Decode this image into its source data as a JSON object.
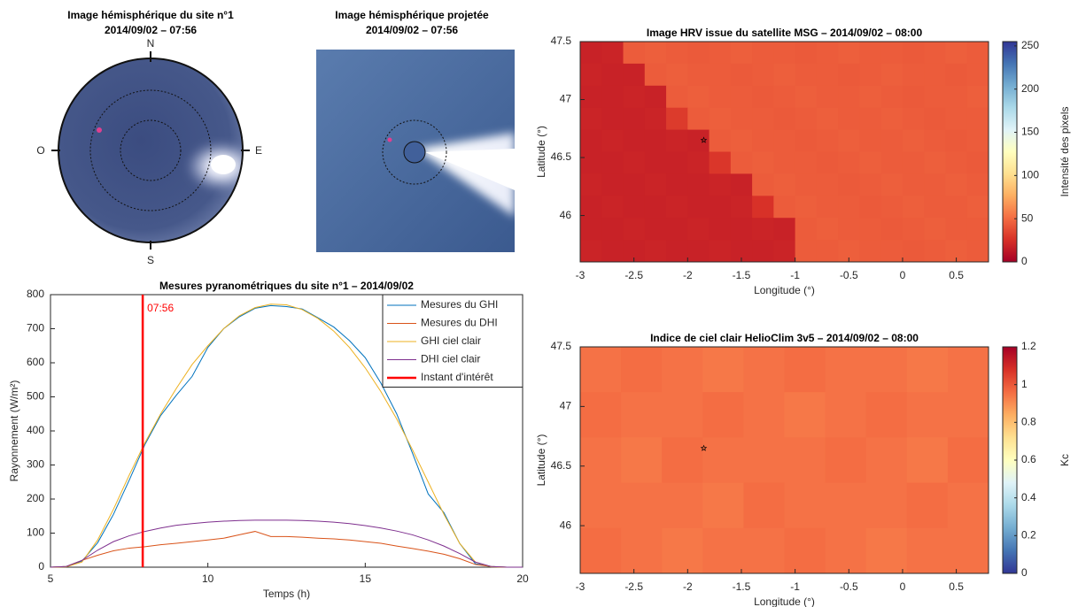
{
  "chart_data": [
    {
      "type": "image",
      "variant": "fisheye",
      "title": [
        "Image hémisphérique du site n°1",
        "2014/09/02 – 07:56"
      ],
      "compass": [
        "N",
        "E",
        "S",
        "O"
      ]
    },
    {
      "type": "image",
      "variant": "projected",
      "title": [
        "Image hémisphérique projetée",
        "2014/09/02 – 07:56"
      ]
    },
    {
      "type": "line",
      "title": "Mesures pyranométriques du site n°1 – 2014/09/02",
      "xlabel": "Temps (h)",
      "ylabel": "Rayonnement (W/m²)",
      "x": [
        5,
        5.5,
        6,
        6.5,
        7,
        7.5,
        8,
        8.5,
        9,
        9.5,
        10,
        10.5,
        11,
        11.5,
        12,
        12.5,
        13,
        13.5,
        14,
        14.5,
        15,
        15.5,
        16,
        16.5,
        17,
        17.5,
        18,
        18.5,
        19,
        19.5,
        20
      ],
      "series": [
        {
          "name": "Mesures du GHI",
          "color": "#0072bd",
          "values": [
            0,
            2,
            18,
            72,
            155,
            255,
            360,
            445,
            505,
            560,
            645,
            700,
            735,
            760,
            768,
            765,
            758,
            732,
            705,
            665,
            615,
            540,
            450,
            335,
            215,
            160,
            70,
            10,
            2,
            0,
            0
          ]
        },
        {
          "name": "Mesures du DHI",
          "color": "#d95319",
          "values": [
            0,
            2,
            20,
            35,
            48,
            56,
            60,
            66,
            70,
            75,
            80,
            85,
            95,
            105,
            90,
            90,
            88,
            85,
            83,
            80,
            75,
            70,
            62,
            55,
            47,
            38,
            25,
            8,
            2,
            0,
            0
          ]
        },
        {
          "name": "GHI ciel clair",
          "color": "#edb120",
          "values": [
            0,
            1,
            15,
            80,
            170,
            270,
            365,
            450,
            525,
            595,
            650,
            700,
            738,
            762,
            772,
            770,
            756,
            730,
            693,
            645,
            585,
            515,
            435,
            345,
            250,
            155,
            70,
            15,
            1,
            0,
            0
          ]
        },
        {
          "name": "DHI ciel clair",
          "color": "#7e2f8e",
          "values": [
            0,
            2,
            20,
            50,
            75,
            92,
            105,
            115,
            123,
            128,
            132,
            135,
            137,
            138,
            138,
            138,
            137,
            135,
            132,
            128,
            122,
            115,
            106,
            95,
            80,
            62,
            40,
            15,
            2,
            0,
            0
          ]
        }
      ],
      "vline": {
        "x": 7.93,
        "label": "07:56",
        "name": "Instant d'intérêt",
        "color": "#ff0000"
      },
      "xlim": [
        5,
        20
      ],
      "xticks": [
        5,
        10,
        15,
        20
      ],
      "ylim": [
        0,
        800
      ],
      "yticks": [
        0,
        100,
        200,
        300,
        400,
        500,
        600,
        700,
        800
      ],
      "legend": "upper-right"
    },
    {
      "type": "heatmap",
      "title": "Image HRV issue du satellite MSG – 2014/09/02 – 08:00",
      "xlabel": "Longitude (°)",
      "ylabel": "Latitude (°)",
      "clabel": "Intensité des pixels",
      "xlim": [
        -3,
        0.8
      ],
      "xticks": [
        -3,
        -2.5,
        -2,
        -1.5,
        -1,
        -0.5,
        0,
        0.5
      ],
      "ylim": [
        45.6,
        47.5
      ],
      "yticks": [
        46,
        46.5,
        47,
        47.5
      ],
      "clim": [
        0,
        255
      ],
      "cticks": [
        0,
        50,
        100,
        150,
        200,
        250
      ],
      "colormap": [
        "#a50026",
        "#d73027",
        "#f46d43",
        "#fdae61",
        "#fee090",
        "#ffffbf",
        "#e0f3f8",
        "#abd9e9",
        "#74add1",
        "#4575b4",
        "#313695"
      ],
      "marker": {
        "x": -1.85,
        "y": 46.65
      },
      "z": [
        [
          18,
          19,
          44,
          45,
          44,
          43,
          44,
          45,
          44,
          44,
          43,
          44,
          45,
          44,
          44,
          43,
          44,
          45,
          44
        ],
        [
          19,
          18,
          18,
          44,
          45,
          44,
          44,
          43,
          44,
          45,
          44,
          44,
          43,
          44,
          45,
          44,
          44,
          43,
          44
        ],
        [
          18,
          18,
          19,
          18,
          44,
          45,
          44,
          44,
          43,
          44,
          45,
          44,
          44,
          45,
          44,
          43,
          44,
          44,
          45
        ],
        [
          19,
          18,
          18,
          19,
          30,
          44,
          45,
          44,
          44,
          43,
          44,
          45,
          44,
          44,
          45,
          44,
          43,
          44,
          44
        ],
        [
          18,
          19,
          18,
          18,
          19,
          18,
          44,
          45,
          44,
          44,
          43,
          44,
          45,
          44,
          44,
          45,
          44,
          43,
          44
        ],
        [
          18,
          18,
          19,
          18,
          18,
          19,
          28,
          44,
          45,
          44,
          44,
          43,
          44,
          45,
          44,
          44,
          45,
          44,
          43
        ],
        [
          19,
          18,
          18,
          19,
          18,
          18,
          19,
          18,
          44,
          45,
          44,
          44,
          43,
          44,
          45,
          44,
          44,
          45,
          44
        ],
        [
          18,
          19,
          18,
          18,
          19,
          18,
          18,
          19,
          26,
          44,
          45,
          44,
          44,
          43,
          44,
          45,
          44,
          44,
          45
        ],
        [
          18,
          18,
          19,
          18,
          18,
          19,
          18,
          18,
          19,
          18,
          44,
          45,
          44,
          44,
          43,
          44,
          45,
          44,
          44
        ],
        [
          19,
          18,
          18,
          19,
          18,
          18,
          19,
          18,
          18,
          19,
          44,
          44,
          45,
          44,
          44,
          43,
          44,
          45,
          44
        ]
      ]
    },
    {
      "type": "heatmap",
      "title": "Indice de ciel clair HelioClim 3v5 – 2014/09/02 – 08:00",
      "xlabel": "Longitude (°)",
      "ylabel": "Latitude (°)",
      "clabel": "Kc",
      "xlim": [
        -3,
        0.8
      ],
      "xticks": [
        -3,
        -2.5,
        -2,
        -1.5,
        -1,
        -0.5,
        0,
        0.5
      ],
      "ylim": [
        45.6,
        47.5
      ],
      "yticks": [
        46,
        46.5,
        47,
        47.5
      ],
      "clim": [
        0,
        1.2
      ],
      "cticks": [
        0,
        0.2,
        0.4,
        0.6,
        0.8,
        1,
        1.2
      ],
      "colormap": [
        "#313695",
        "#4575b4",
        "#74add1",
        "#abd9e9",
        "#e0f3f8",
        "#ffffbf",
        "#fee090",
        "#fdae61",
        "#f46d43",
        "#d73027",
        "#a50026"
      ],
      "marker": {
        "x": -1.85,
        "y": 46.65
      },
      "z": [
        [
          0.95,
          0.96,
          0.95,
          0.94,
          0.95,
          0.96,
          0.95,
          0.95,
          0.94,
          0.95
        ],
        [
          0.96,
          0.95,
          0.95,
          0.96,
          0.95,
          0.94,
          0.95,
          0.96,
          0.95,
          0.95
        ],
        [
          0.95,
          0.94,
          0.96,
          0.95,
          0.95,
          0.95,
          0.96,
          0.95,
          0.94,
          0.96
        ],
        [
          0.95,
          0.95,
          0.95,
          0.94,
          0.96,
          0.95,
          0.95,
          0.95,
          0.96,
          0.95
        ],
        [
          0.96,
          0.95,
          0.94,
          0.95,
          0.95,
          0.96,
          0.95,
          0.94,
          0.95,
          0.95
        ]
      ]
    }
  ]
}
